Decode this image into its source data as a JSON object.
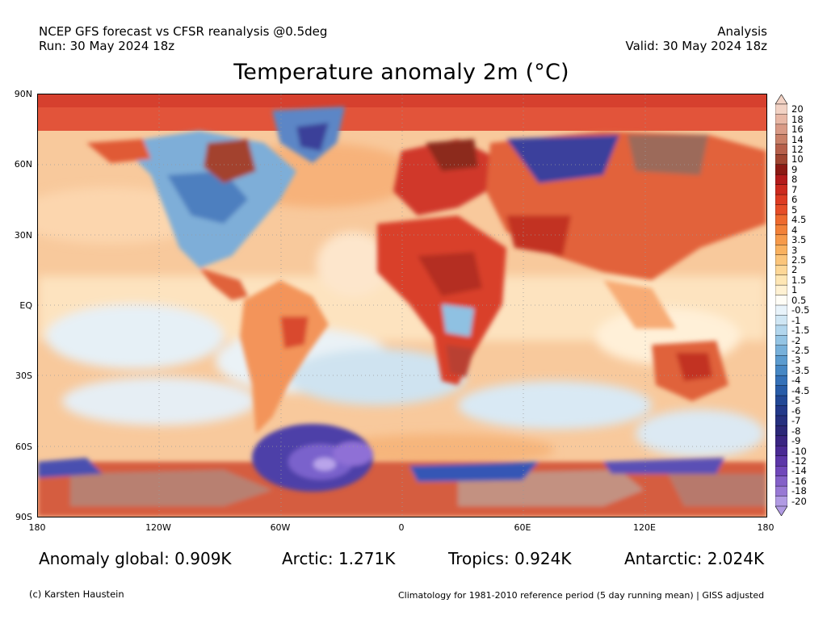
{
  "header": {
    "model_line": "NCEP GFS forecast vs CFSR reanalysis @0.5deg",
    "run_line": "Run: 30 May 2024 18z",
    "type_line": "Analysis",
    "valid_line": "Valid: 30 May 2024 18z"
  },
  "title": "Temperature anomaly 2m (°C)",
  "axes": {
    "lat_ticks": [
      "90N",
      "60N",
      "30N",
      "EQ",
      "30S",
      "60S",
      "90S"
    ],
    "lon_ticks": [
      "180",
      "120W",
      "60W",
      "0",
      "60E",
      "120E",
      "180"
    ]
  },
  "colorbar": {
    "labels": [
      "20",
      "18",
      "16",
      "14",
      "12",
      "10",
      "9",
      "8",
      "7",
      "6",
      "5",
      "4.5",
      "4",
      "3.5",
      "3",
      "2.5",
      "2",
      "1.5",
      "1",
      "0.5",
      "-0.5",
      "-1",
      "-1.5",
      "-2",
      "-2.5",
      "-3",
      "-3.5",
      "-4",
      "-4.5",
      "-5",
      "-6",
      "-7",
      "-8",
      "-9",
      "-10",
      "-12",
      "-14",
      "-16",
      "-18",
      "-20"
    ],
    "colors": [
      "#f2d2c4",
      "#e8b7a5",
      "#d99a86",
      "#c98068",
      "#b6604b",
      "#a04531",
      "#8c1a14",
      "#b31b1b",
      "#cc2a1e",
      "#dd3b22",
      "#e64d27",
      "#ee6a2e",
      "#f28138",
      "#f69a4a",
      "#f9b15f",
      "#fbc57b",
      "#fdd797",
      "#fee6b4",
      "#fff1d2",
      "#fffdf6",
      "#e8f3fa",
      "#cfe6f4",
      "#b2d6ed",
      "#94c4e4",
      "#77b0da",
      "#5b9bcf",
      "#4687c4",
      "#3571b8",
      "#285ca8",
      "#224896",
      "#23398a",
      "#26307f",
      "#2c2878",
      "#3a2582",
      "#4a2a94",
      "#5c36a8",
      "#7047ba",
      "#8460c8",
      "#9878d4",
      "#b19be3"
    ]
  },
  "stats": {
    "global": "Anomaly global: 0.909K",
    "arctic": "Arctic: 1.271K",
    "tropics": "Tropics: 0.924K",
    "antarctic": "Antarctic: 2.024K"
  },
  "footer": {
    "credit": "(c) Karsten Haustein",
    "note": "Climatology for 1981-2010 reference period (5 day running mean) | GISS adjusted"
  }
}
